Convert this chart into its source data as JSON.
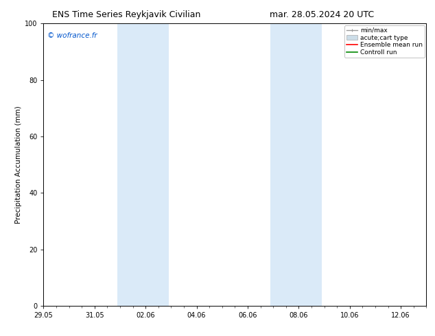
{
  "title_left": "ENS Time Series Reykjavik Civilian",
  "title_right": "mar. 28.05.2024 20 UTC",
  "ylabel": "Precipitation Accumulation (mm)",
  "ylim": [
    0,
    100
  ],
  "yticks": [
    0,
    20,
    40,
    60,
    80,
    100
  ],
  "xtick_labels": [
    "29.05",
    "31.05",
    "02.06",
    "04.06",
    "06.06",
    "08.06",
    "10.06",
    "12.06"
  ],
  "xtick_positions_days": [
    0,
    2,
    4,
    6,
    8,
    10,
    12,
    14
  ],
  "xlim": [
    0,
    15
  ],
  "shaded_bands": [
    {
      "xstart_days": 2.9,
      "xend_days": 4.9
    },
    {
      "xstart_days": 8.9,
      "xend_days": 10.9
    }
  ],
  "shaded_color": "#daeaf8",
  "background_color": "#ffffff",
  "watermark_text": "© wofrance.fr",
  "watermark_color": "#0055cc",
  "legend_labels": [
    "min/max",
    "acute;cart type",
    "Ensemble mean run",
    "Controll run"
  ],
  "legend_colors": [
    "#999999",
    "#ccdde8",
    "#ff0000",
    "#008800"
  ],
  "font_size_title": 9,
  "font_size_axis_label": 7.5,
  "font_size_tick": 7,
  "font_size_legend": 6.5,
  "font_size_watermark": 7.5
}
